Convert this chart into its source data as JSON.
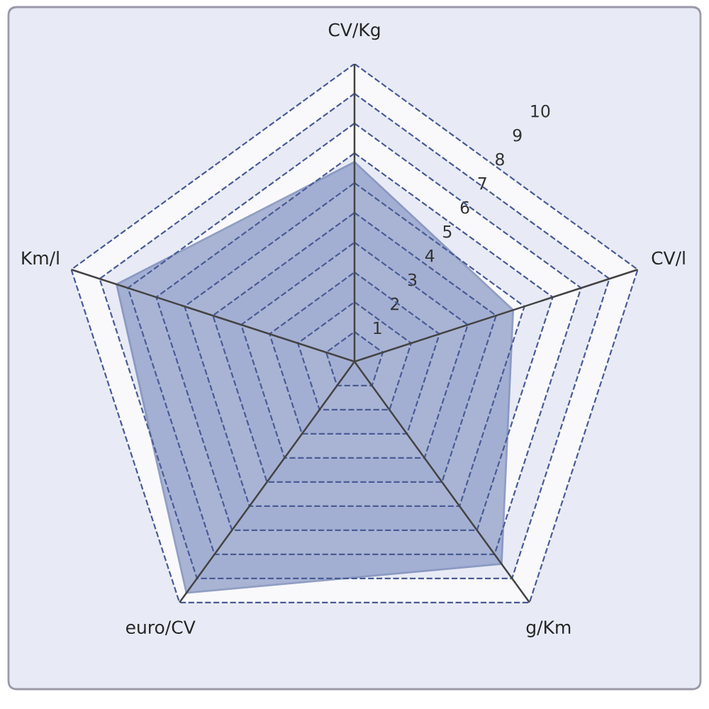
{
  "chart_data": {
    "type": "radar",
    "categories": [
      "CV/Kg",
      "CV/l",
      "g/Km",
      "euro/CV",
      "Km/l"
    ],
    "series": [
      {
        "color": "#7f90c0",
        "values": [
          6.7,
          5.6,
          8.4,
          9.6,
          8.4
        ]
      }
    ],
    "ylim": [
      0,
      10
    ],
    "yticks": [
      1,
      2,
      3,
      4,
      5,
      6,
      7,
      8,
      9,
      10
    ],
    "grid": true,
    "line_style": "dashed"
  }
}
